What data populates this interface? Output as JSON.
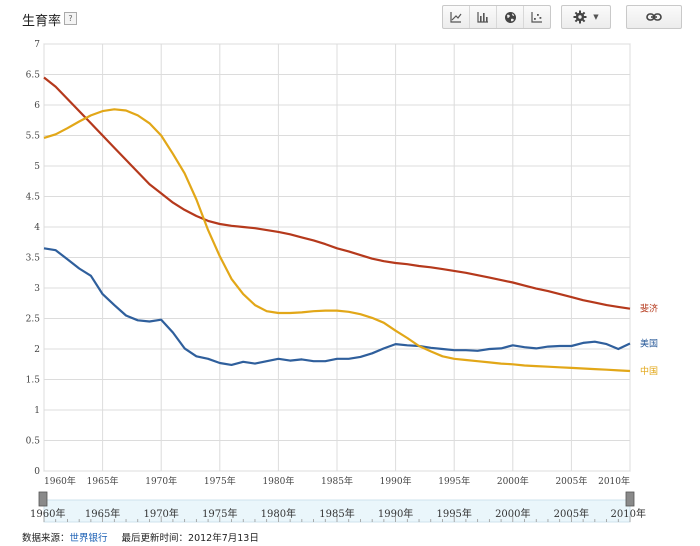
{
  "header": {
    "title": "生育率",
    "help_label": "?"
  },
  "toolbar": {
    "icons": [
      "line-chart-icon",
      "bar-chart-icon",
      "globe-icon",
      "scatter-icon"
    ],
    "settings_icon": "gear-icon",
    "link_icon": "link-icon"
  },
  "footer": {
    "source_label": "数据来源：",
    "source_value": "世界银行",
    "updated_label": "最后更新时间：",
    "updated_value": "2012年7月13日"
  },
  "chart_data": {
    "type": "line",
    "title": "",
    "xlabel": "",
    "ylabel": "",
    "xlim": [
      1960,
      2010
    ],
    "ylim": [
      0,
      7
    ],
    "x_ticks": [
      "1960年",
      "1965年",
      "1970年",
      "1975年",
      "1980年",
      "1985年",
      "1990年",
      "1995年",
      "2000年",
      "2005年",
      "2010年"
    ],
    "y_ticks": [
      "0",
      "0.5",
      "1",
      "1.5",
      "2",
      "2.5",
      "3",
      "3.5",
      "4",
      "4.5",
      "5",
      "5.5",
      "6",
      "6.5",
      "7"
    ],
    "grid": true,
    "legend": "right-end labels",
    "x": [
      1960,
      1961,
      1962,
      1963,
      1964,
      1965,
      1966,
      1967,
      1968,
      1969,
      1970,
      1971,
      1972,
      1973,
      1974,
      1975,
      1976,
      1977,
      1978,
      1979,
      1980,
      1981,
      1982,
      1983,
      1984,
      1985,
      1986,
      1987,
      1988,
      1989,
      1990,
      1991,
      1992,
      1993,
      1994,
      1995,
      1996,
      1997,
      1998,
      1999,
      2000,
      2001,
      2002,
      2003,
      2004,
      2005,
      2006,
      2007,
      2008,
      2009,
      2010
    ],
    "series": [
      {
        "name": "斐济",
        "color": "#b5391c",
        "values": [
          6.45,
          6.3,
          6.1,
          5.9,
          5.7,
          5.5,
          5.3,
          5.1,
          4.9,
          4.7,
          4.55,
          4.4,
          4.28,
          4.18,
          4.1,
          4.05,
          4.02,
          4.0,
          3.98,
          3.95,
          3.92,
          3.88,
          3.83,
          3.78,
          3.72,
          3.65,
          3.6,
          3.54,
          3.48,
          3.44,
          3.41,
          3.39,
          3.36,
          3.34,
          3.31,
          3.28,
          3.25,
          3.21,
          3.17,
          3.13,
          3.09,
          3.04,
          2.99,
          2.95,
          2.9,
          2.85,
          2.8,
          2.76,
          2.72,
          2.69,
          2.66
        ]
      },
      {
        "name": "美国",
        "color": "#2f5f9c",
        "values": [
          3.65,
          3.62,
          3.47,
          3.32,
          3.2,
          2.9,
          2.72,
          2.55,
          2.47,
          2.45,
          2.48,
          2.27,
          2.01,
          1.88,
          1.84,
          1.77,
          1.74,
          1.79,
          1.76,
          1.8,
          1.84,
          1.81,
          1.83,
          1.8,
          1.8,
          1.84,
          1.84,
          1.87,
          1.93,
          2.01,
          2.08,
          2.06,
          2.05,
          2.02,
          2.0,
          1.98,
          1.98,
          1.97,
          2.0,
          2.01,
          2.06,
          2.03,
          2.01,
          2.04,
          2.05,
          2.05,
          2.1,
          2.12,
          2.08,
          2.0,
          2.09
        ]
      },
      {
        "name": "中国",
        "color": "#e2a718",
        "values": [
          5.46,
          5.52,
          5.62,
          5.73,
          5.83,
          5.9,
          5.93,
          5.91,
          5.83,
          5.7,
          5.5,
          5.2,
          4.88,
          4.45,
          3.95,
          3.52,
          3.15,
          2.9,
          2.72,
          2.62,
          2.59,
          2.59,
          2.6,
          2.62,
          2.63,
          2.63,
          2.61,
          2.57,
          2.51,
          2.43,
          2.3,
          2.18,
          2.05,
          1.96,
          1.88,
          1.84,
          1.82,
          1.8,
          1.78,
          1.76,
          1.75,
          1.73,
          1.72,
          1.71,
          1.7,
          1.69,
          1.68,
          1.67,
          1.66,
          1.65,
          1.64
        ]
      }
    ],
    "range_slider": {
      "start_label": "1960年",
      "end_label": "2010年"
    }
  }
}
